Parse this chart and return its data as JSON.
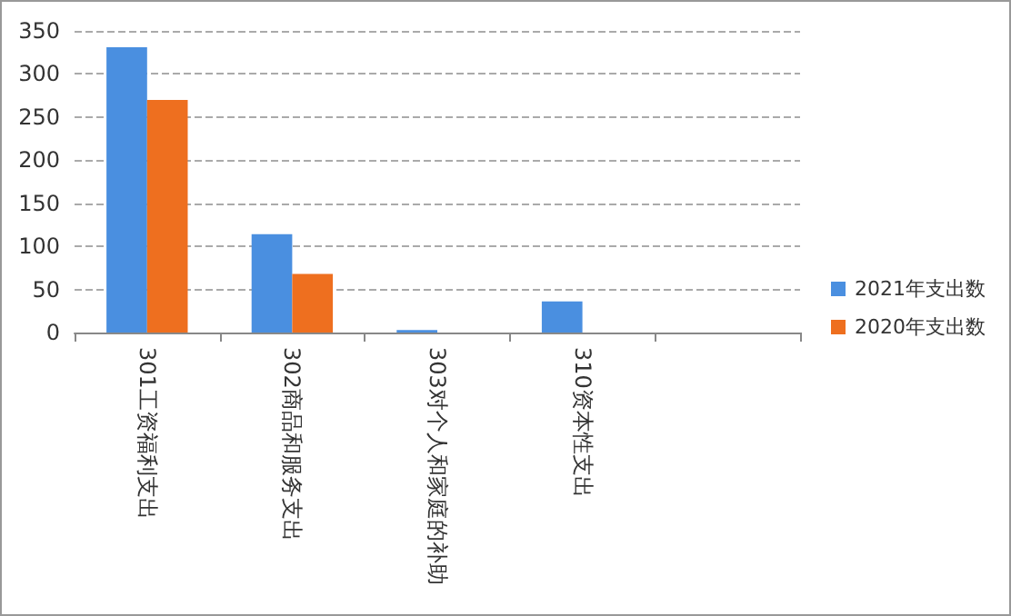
{
  "chart_data": {
    "type": "bar",
    "categories": [
      "301工资福利支出",
      "302商品和服务支出",
      "303对个人和家庭的补助",
      "310资本性支出",
      null
    ],
    "series": [
      {
        "name": "2021年支出数",
        "color": "#4a8fe0",
        "values": [
          331,
          114,
          3,
          36,
          null
        ]
      },
      {
        "name": "2020年支出数",
        "color": "#ee6f1f",
        "values": [
          270,
          68,
          null,
          null,
          null
        ]
      }
    ],
    "ylim": [
      0,
      350
    ],
    "yticks": [
      0,
      50,
      100,
      150,
      200,
      250,
      300,
      350
    ],
    "grid": "y",
    "legend": "right"
  }
}
